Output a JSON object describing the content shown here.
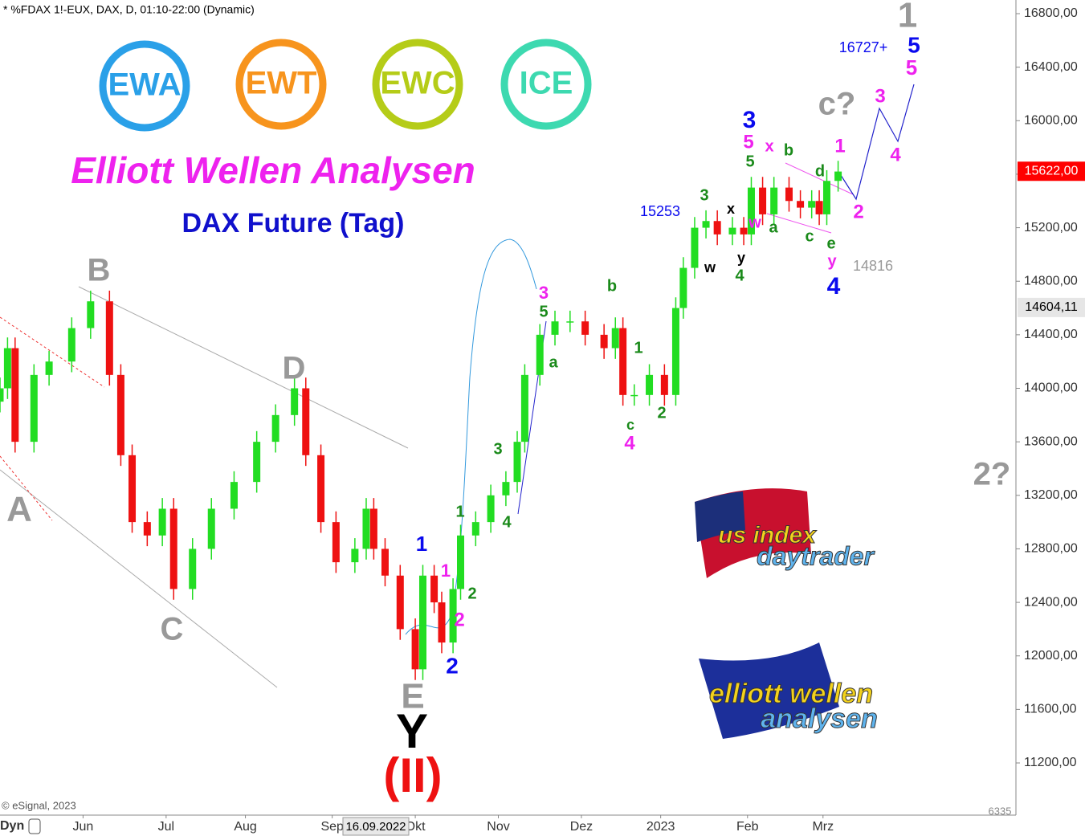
{
  "chart_data": {
    "type": "candlestick",
    "header": "* %FDAX 1!-EUX, DAX, D, 01:10-22:00 (Dynamic)",
    "title": "Elliott Wellen Analysen",
    "subtitle": "DAX Future (Tag)",
    "copyright": "© eSignal, 2023",
    "interval_label": "Dyn",
    "cursor_date": "16.09.2022",
    "corner_label": "6335",
    "logos": [
      "EWA",
      "EWT",
      "EWC",
      "ICE"
    ],
    "banner_texts": [
      "us index",
      "daytrader",
      "elliott wellen",
      "analysen"
    ],
    "up_color": "#22dd22",
    "down_color": "#ee1111",
    "xlim": [
      0,
      269.1
    ],
    "ylim": [
      10810,
      16902
    ],
    "xticks": [
      {
        "value": 22,
        "label": "Jun"
      },
      {
        "value": 44,
        "label": "Jul"
      },
      {
        "value": 65,
        "label": "Aug"
      },
      {
        "value": 88,
        "label": "Sep"
      },
      {
        "value": 110,
        "label": "Okt"
      },
      {
        "value": 132,
        "label": "Nov"
      },
      {
        "value": 154,
        "label": "Dez"
      },
      {
        "value": 175,
        "label": "2023"
      },
      {
        "value": 198,
        "label": "Feb"
      },
      {
        "value": 218,
        "label": "Mrz"
      }
    ],
    "yticks": [
      {
        "value": 11200,
        "label": "11200,00"
      },
      {
        "value": 11600,
        "label": "11600,00"
      },
      {
        "value": 12000,
        "label": "12000,00"
      },
      {
        "value": 12400,
        "label": "12400,00"
      },
      {
        "value": 12800,
        "label": "12800,00"
      },
      {
        "value": 13200,
        "label": "13200,00"
      },
      {
        "value": 13600,
        "label": "13600,00"
      },
      {
        "value": 14000,
        "label": "14000,00"
      },
      {
        "value": 14400,
        "label": "14400,00"
      },
      {
        "value": 14800,
        "label": "14800,00"
      },
      {
        "value": 15200,
        "label": "15200,00"
      },
      {
        "value": 15600,
        "label": "15600,00"
      },
      {
        "value": 16000,
        "label": "16000,00"
      },
      {
        "value": 16400,
        "label": "16400,00"
      },
      {
        "value": 16800,
        "label": "16800,00"
      }
    ],
    "price_markers": [
      {
        "value": 15622,
        "label": "15622,00",
        "color": "#ff0000"
      },
      {
        "value": 14604.11,
        "label": "14604,11",
        "color": "#e6e6e6"
      }
    ],
    "x": [
      0,
      2,
      4,
      9,
      13,
      19,
      24,
      29,
      32,
      35,
      39,
      43,
      46,
      51,
      56,
      62,
      68,
      73,
      78,
      81,
      85,
      89,
      94,
      97,
      99,
      102,
      106,
      110,
      112,
      115,
      117,
      120,
      122,
      126,
      130,
      134,
      137,
      139,
      143,
      147,
      151,
      155,
      160,
      163,
      165,
      168,
      172,
      176,
      179,
      181,
      184,
      187,
      190,
      194,
      197,
      199,
      202,
      205,
      209,
      212,
      215,
      217,
      219,
      222
    ],
    "open": [
      13900,
      14000,
      14300,
      13600,
      14100,
      14200,
      14450,
      14650,
      14100,
      13500,
      13000,
      12900,
      13100,
      12500,
      12800,
      13100,
      13300,
      13600,
      13800,
      14000,
      13500,
      13000,
      12700,
      12800,
      13100,
      12800,
      12600,
      12200,
      11900,
      12600,
      12400,
      12100,
      12500,
      12900,
      13000,
      13200,
      13300,
      13600,
      14100,
      14400,
      14500,
      14500,
      14400,
      14300,
      14450,
      13950,
      13950,
      14100,
      13950,
      14600,
      14900,
      15200,
      15250,
      15150,
      15200,
      15150,
      15500,
      15300,
      15500,
      15400,
      15350,
      15400,
      15300,
      15550
    ],
    "high": [
      14080,
      14380,
      14380,
      14180,
      14280,
      14530,
      14730,
      14730,
      14180,
      13580,
      13080,
      13180,
      13180,
      12880,
      13180,
      13380,
      13680,
      13880,
      14080,
      14080,
      13580,
      13080,
      12880,
      13180,
      13180,
      12880,
      12680,
      12280,
      12680,
      12680,
      12480,
      12580,
      12980,
      13080,
      13280,
      13380,
      13680,
      14180,
      14480,
      14580,
      14580,
      14580,
      14480,
      14530,
      14530,
      14030,
      14180,
      14180,
      14680,
      14980,
      15280,
      15330,
      15330,
      15280,
      15280,
      15580,
      15580,
      15580,
      15580,
      15480,
      15480,
      15480,
      15630,
      15700
    ],
    "low": [
      13820,
      13920,
      13520,
      13520,
      14020,
      14120,
      14370,
      14020,
      13420,
      12920,
      12820,
      12820,
      12420,
      12420,
      12720,
      13020,
      13220,
      13520,
      13720,
      13420,
      12920,
      12620,
      12620,
      12720,
      12720,
      12520,
      12120,
      11820,
      11820,
      12320,
      12020,
      12020,
      12420,
      12820,
      12920,
      13120,
      13220,
      13520,
      14020,
      14320,
      14420,
      14320,
      14220,
      14220,
      13870,
      13870,
      13870,
      13870,
      13870,
      14520,
      14820,
      15120,
      15070,
      15070,
      15070,
      15070,
      15220,
      15220,
      15320,
      15270,
      15270,
      15220,
      15220,
      15470
    ],
    "close": [
      14000,
      14300,
      13600,
      14100,
      14200,
      14450,
      14650,
      14100,
      13500,
      13000,
      12900,
      13100,
      12500,
      12800,
      13100,
      13300,
      13600,
      13800,
      14000,
      13500,
      13000,
      12700,
      12800,
      13100,
      12800,
      12600,
      12200,
      11900,
      12600,
      12400,
      12100,
      12500,
      12900,
      13000,
      13200,
      13300,
      13600,
      14100,
      14400,
      14500,
      14500,
      14400,
      14300,
      14450,
      13950,
      13950,
      14100,
      13950,
      14600,
      14900,
      15200,
      15250,
      15150,
      15200,
      15150,
      15500,
      15300,
      15500,
      15400,
      15350,
      15400,
      15300,
      15550,
      15620
    ],
    "annotations": [
      {
        "text": "1",
        "color": "#999999"
      },
      {
        "text": "5",
        "color": "#0a0aee"
      },
      {
        "text": "5",
        "color": "#ee22ee"
      },
      {
        "text": "16727+",
        "color": "#0a0aee"
      },
      {
        "text": "c?",
        "color": "#999999"
      },
      {
        "text": "3",
        "color": "#ee22ee"
      },
      {
        "text": "4",
        "color": "#ee22ee"
      },
      {
        "text": "2",
        "color": "#ee22ee"
      },
      {
        "text": "1",
        "color": "#ee22ee"
      },
      {
        "text": "3",
        "color": "#0a0aee"
      },
      {
        "text": "5",
        "color": "#ee22ee"
      },
      {
        "text": "x",
        "color": "#ee22ee"
      },
      {
        "text": "b",
        "color": "#1a8a1a"
      },
      {
        "text": "5",
        "color": "#1a8a1a"
      },
      {
        "text": "d",
        "color": "#1a8a1a"
      },
      {
        "text": "15253",
        "color": "#0a0aee"
      },
      {
        "text": "3",
        "color": "#1a8a1a"
      },
      {
        "text": "x",
        "color": "#000000"
      },
      {
        "text": "w",
        "color": "#ee22ee"
      },
      {
        "text": "a",
        "color": "#1a8a1a"
      },
      {
        "text": "c",
        "color": "#1a8a1a"
      },
      {
        "text": "e",
        "color": "#1a8a1a"
      },
      {
        "text": "y",
        "color": "#ee22ee"
      },
      {
        "text": "14816",
        "color": "#999999"
      },
      {
        "text": "4",
        "color": "#0a0aee"
      },
      {
        "text": "w",
        "color": "#000000"
      },
      {
        "text": "y",
        "color": "#000000"
      },
      {
        "text": "4",
        "color": "#1a8a1a"
      },
      {
        "text": "B",
        "color": "#999999"
      },
      {
        "text": "D",
        "color": "#999999"
      },
      {
        "text": "A",
        "color": "#999999"
      },
      {
        "text": "C",
        "color": "#999999"
      },
      {
        "text": "3",
        "color": "#ee22ee"
      },
      {
        "text": "5",
        "color": "#1a8a1a"
      },
      {
        "text": "b",
        "color": "#1a8a1a"
      },
      {
        "text": "a",
        "color": "#1a8a1a"
      },
      {
        "text": "1",
        "color": "#1a8a1a"
      },
      {
        "text": "2",
        "color": "#1a8a1a"
      },
      {
        "text": "c",
        "color": "#1a8a1a"
      },
      {
        "text": "4",
        "color": "#ee22ee"
      },
      {
        "text": "3",
        "color": "#1a8a1a"
      },
      {
        "text": "4",
        "color": "#1a8a1a"
      },
      {
        "text": "1",
        "color": "#1a8a1a"
      },
      {
        "text": "2",
        "color": "#1a8a1a"
      },
      {
        "text": "1",
        "color": "#0a0aee"
      },
      {
        "text": "1",
        "color": "#ee22ee"
      },
      {
        "text": "2",
        "color": "#ee22ee"
      },
      {
        "text": "2",
        "color": "#0a0aee"
      },
      {
        "text": "E",
        "color": "#999999"
      },
      {
        "text": "Y",
        "color": "#000000"
      },
      {
        "text": "(II)",
        "color": "#ee1111"
      },
      {
        "text": "2?",
        "color": "#999999"
      }
    ]
  }
}
